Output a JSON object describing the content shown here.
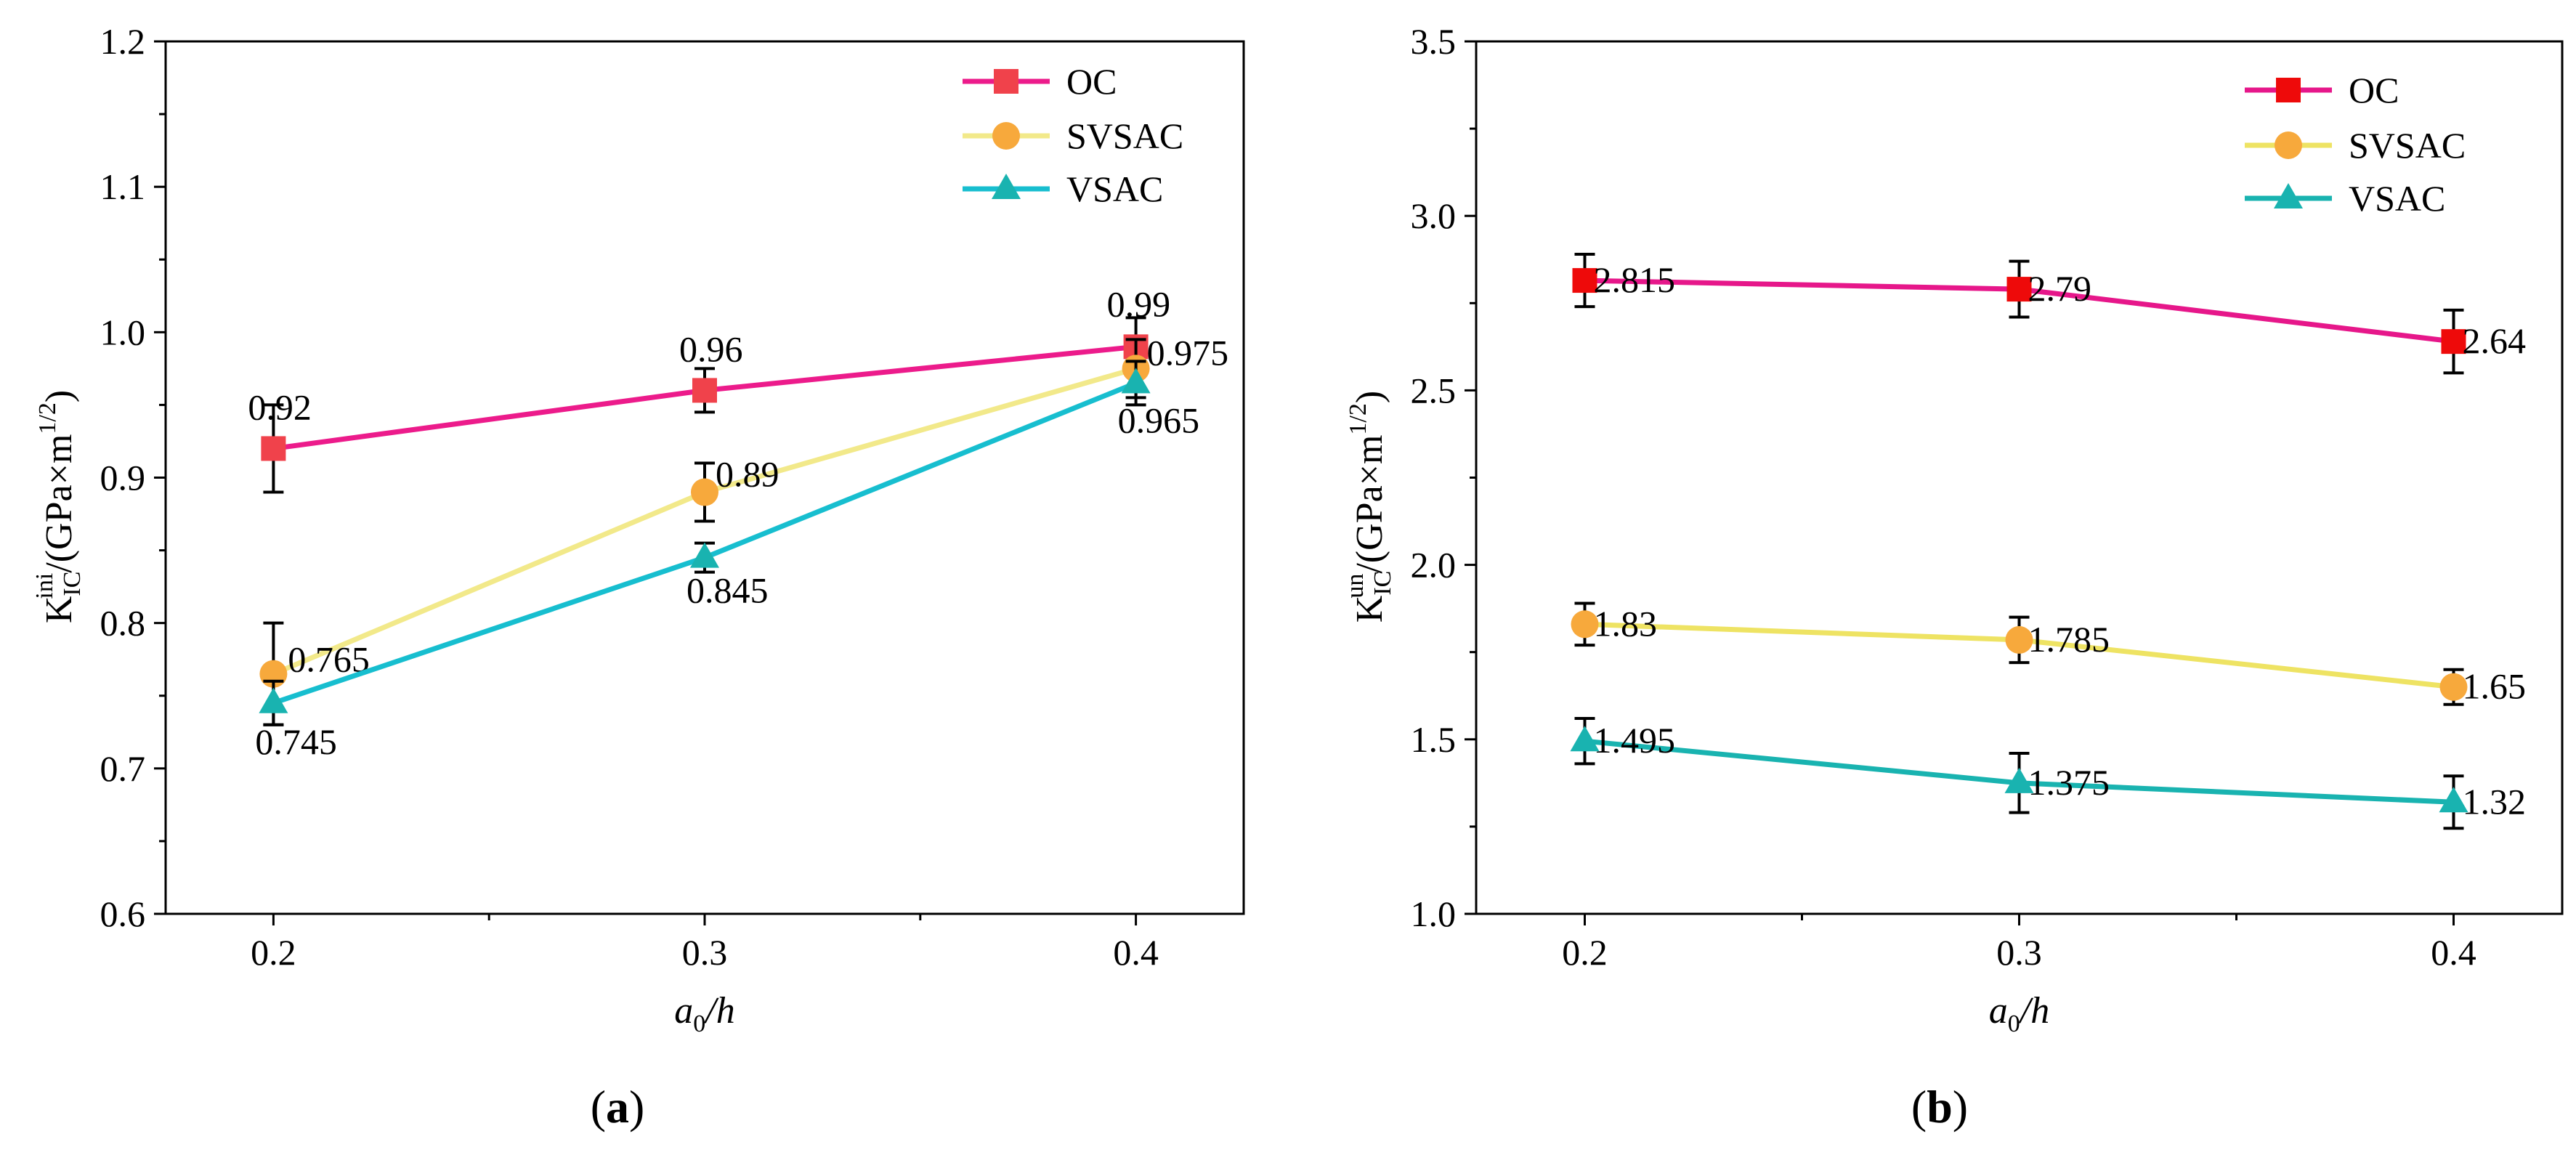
{
  "chart_data": [
    {
      "id": "a",
      "type": "line",
      "panel_label_open": "(",
      "panel_label_letter": "a",
      "panel_label_close": ")",
      "xlabel_italic": "a",
      "xlabel_sub": "0",
      "xlabel_rest": "/h",
      "ylabel_main": "K",
      "ylabel_sup": "ini",
      "ylabel_sub": "IC",
      "ylabel_unit": "/(GPa×m",
      "ylabel_unit_sup": "1/2",
      "ylabel_close": ")",
      "x": [
        0.2,
        0.3,
        0.4
      ],
      "x_tick_labels": [
        "0.2",
        "0.3",
        "0.4"
      ],
      "xlim": [
        0.175,
        0.425
      ],
      "ylim": [
        0.6,
        1.2
      ],
      "y_ticks": [
        0.6,
        0.7,
        0.8,
        0.9,
        1.0,
        1.1,
        1.2
      ],
      "y_tick_labels": [
        "0.6",
        "0.7",
        "0.8",
        "0.9",
        "1.0",
        "1.1",
        "1.2"
      ],
      "legend_position": "top-right",
      "series": [
        {
          "name": "OC",
          "marker": "square",
          "line_color": "#ec1b8b",
          "marker_color": "#f0424b",
          "values": [
            0.92,
            0.96,
            0.99
          ],
          "labels": [
            "0.92",
            "0.96",
            "0.99"
          ],
          "errors": [
            0.03,
            0.015,
            0.02
          ]
        },
        {
          "name": "SVSAC",
          "marker": "circle",
          "line_color": "#f2e98a",
          "marker_color": "#f7a93c",
          "values": [
            0.765,
            0.89,
            0.975
          ],
          "labels": [
            "0.765",
            "0.89",
            "0.975"
          ],
          "errors": [
            0.035,
            0.02,
            0.02
          ]
        },
        {
          "name": "VSAC",
          "marker": "triangle",
          "line_color": "#17becf",
          "marker_color": "#19b3b0",
          "values": [
            0.745,
            0.845,
            0.965
          ],
          "labels": [
            "0.745",
            "0.845",
            "0.965"
          ],
          "errors": [
            0.015,
            0.01,
            0.015
          ]
        }
      ]
    },
    {
      "id": "b",
      "type": "line",
      "panel_label_open": "(",
      "panel_label_letter": "b",
      "panel_label_close": ")",
      "xlabel_italic": "a",
      "xlabel_sub": "0",
      "xlabel_rest": "/h",
      "ylabel_main": "K",
      "ylabel_sup": "un",
      "ylabel_sub": "IC",
      "ylabel_unit": "/(GPa×m",
      "ylabel_unit_sup": "1/2",
      "ylabel_close": ")",
      "x": [
        0.2,
        0.3,
        0.4
      ],
      "x_tick_labels": [
        "0.2",
        "0.3",
        "0.4"
      ],
      "xlim": [
        0.175,
        0.425
      ],
      "ylim": [
        1.0,
        3.5
      ],
      "y_ticks": [
        1.0,
        1.5,
        2.0,
        2.5,
        3.0,
        3.5
      ],
      "y_tick_labels": [
        "1.0",
        "1.5",
        "2.0",
        "2.5",
        "3.0",
        "3.5"
      ],
      "legend_position": "top-right",
      "series": [
        {
          "name": "OC",
          "marker": "square",
          "line_color": "#e6178a",
          "marker_color": "#ee0a0a",
          "values": [
            2.815,
            2.79,
            2.64
          ],
          "labels": [
            "2.815",
            "2.79",
            "2.64"
          ],
          "errors": [
            0.075,
            0.08,
            0.09
          ]
        },
        {
          "name": "SVSAC",
          "marker": "circle",
          "line_color": "#eee363",
          "marker_color": "#f7a93c",
          "values": [
            1.83,
            1.785,
            1.65
          ],
          "labels": [
            "1.83",
            "1.785",
            "1.65"
          ],
          "errors": [
            0.06,
            0.065,
            0.05
          ]
        },
        {
          "name": "VSAC",
          "marker": "triangle",
          "line_color": "#19b3b0",
          "marker_color": "#19b3b0",
          "values": [
            1.495,
            1.375,
            1.32
          ],
          "labels": [
            "1.495",
            "1.375",
            "1.32"
          ],
          "errors": [
            0.065,
            0.085,
            0.075
          ]
        }
      ]
    }
  ]
}
